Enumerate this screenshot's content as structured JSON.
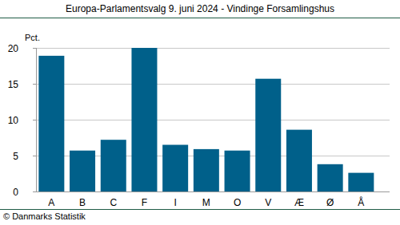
{
  "chart_data": {
    "type": "bar",
    "title": "Europa-Parlamentsvalg 9. juni 2024 - Vindinge Forsamlingshus",
    "y_label": "Pct.",
    "source": "© Danmarks Statistik",
    "categories": [
      "A",
      "B",
      "C",
      "F",
      "I",
      "M",
      "O",
      "V",
      "Æ",
      "Ø",
      "Å"
    ],
    "values": [
      18.9,
      5.7,
      7.2,
      20.0,
      6.5,
      5.9,
      5.7,
      15.7,
      8.6,
      3.8,
      2.6
    ],
    "color": "#00608a",
    "ylim": [
      0,
      20
    ],
    "yticks": [
      0,
      5,
      10,
      15,
      20
    ],
    "grid": true
  }
}
